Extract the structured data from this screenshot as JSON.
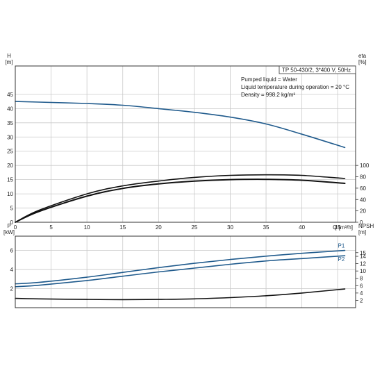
{
  "colors": {
    "blue": "#1f5a8c",
    "black": "#111111",
    "grid": "#c9c9c9",
    "frame": "#333333"
  },
  "chart_data": [
    {
      "type": "line",
      "panel": "head-efficiency",
      "xlabel": "Q [m³/h]",
      "xlim": [
        0,
        47.5
      ],
      "x_ticks": [
        0,
        5,
        10,
        15,
        20,
        25,
        30,
        35,
        40,
        45
      ],
      "y_left_label": [
        "H",
        "[m]"
      ],
      "y_left_lim": [
        0,
        55
      ],
      "y_left_ticks": [
        0,
        5,
        10,
        15,
        20,
        25,
        30,
        35,
        40,
        45
      ],
      "y_right_label": [
        "eta",
        "[%]"
      ],
      "y_right_lim": [
        0,
        275
      ],
      "y_right_ticks": [
        0,
        20,
        40,
        60,
        80,
        100
      ],
      "grid": true,
      "annotations": [
        "TP 50-430/2, 3*400 V, 50Hz",
        "Pumped liquid = Water",
        "Liquid temperature during operation = 20 °C",
        "Density = 998.2 kg/m³"
      ],
      "series": [
        {
          "color": "blue",
          "axis": "left",
          "x": [
            0,
            3.3,
            10,
            15,
            20,
            25,
            30,
            35,
            40,
            46
          ],
          "y": [
            42.5,
            42.3,
            41.8,
            41.2,
            40.0,
            38.7,
            37.0,
            34.6,
            31.0,
            26.3
          ]
        },
        {
          "color": "black",
          "axis": "left",
          "x": [
            0,
            3.3,
            10,
            15,
            20,
            25,
            30,
            35,
            40,
            46
          ],
          "y": [
            0,
            4.2,
            10.0,
            12.8,
            14.5,
            15.8,
            16.5,
            16.7,
            16.5,
            15.4
          ]
        },
        {
          "color": "black",
          "axis": "left",
          "x": [
            0,
            3.3,
            10,
            15,
            20,
            25,
            30,
            35,
            40,
            46
          ],
          "y": [
            0,
            3.8,
            9.2,
            11.9,
            13.5,
            14.5,
            15.0,
            15.1,
            14.8,
            13.7
          ]
        }
      ]
    },
    {
      "type": "line",
      "panel": "power-npsh",
      "xlim": [
        0,
        47.5
      ],
      "x_ticks": [
        0,
        5,
        10,
        15,
        20,
        25,
        30,
        35,
        40,
        45
      ],
      "y_left_label": [
        "P",
        "[kW]"
      ],
      "y_left_lim": [
        0,
        7.5
      ],
      "y_left_ticks": [
        2,
        4,
        6
      ],
      "y_right_label": [
        "NPSH",
        "[m]"
      ],
      "y_right_lim": [
        0,
        19.5
      ],
      "y_right_ticks": [
        2,
        4,
        6,
        8,
        10,
        12,
        14,
        15
      ],
      "grid": true,
      "series": [
        {
          "name": "P1",
          "color": "blue",
          "axis": "left",
          "x": [
            0,
            3.3,
            10,
            15,
            20,
            25,
            30,
            35,
            40,
            46
          ],
          "y": [
            2.5,
            2.65,
            3.2,
            3.7,
            4.2,
            4.65,
            5.05,
            5.4,
            5.7,
            6.0
          ]
        },
        {
          "name": "P2",
          "color": "blue",
          "axis": "left",
          "x": [
            0,
            3.3,
            10,
            15,
            20,
            25,
            30,
            35,
            40,
            46
          ],
          "y": [
            2.2,
            2.35,
            2.85,
            3.3,
            3.75,
            4.15,
            4.55,
            4.9,
            5.15,
            5.45
          ]
        },
        {
          "color": "black",
          "axis": "right",
          "x": [
            0,
            3.3,
            10,
            15,
            20,
            25,
            30,
            35,
            40,
            46
          ],
          "y": [
            2.55,
            2.4,
            2.25,
            2.2,
            2.25,
            2.4,
            2.75,
            3.25,
            4.0,
            5.1
          ]
        }
      ]
    }
  ]
}
